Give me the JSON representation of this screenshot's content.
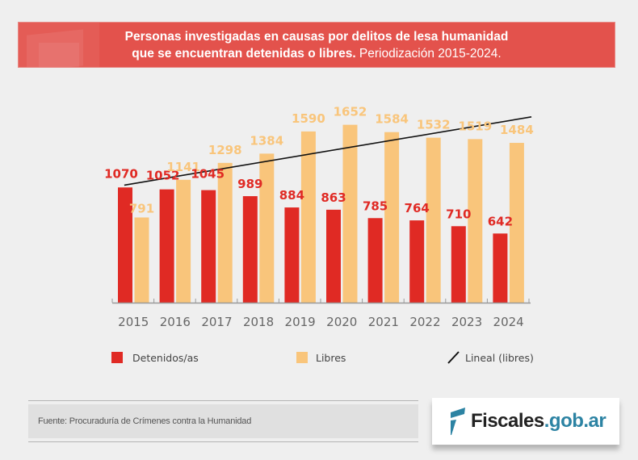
{
  "header": {
    "title_bold": "Personas investigadas en causas por delitos de lesa humanidad que se encuentran detenidas o libres.",
    "title_line1": "Personas investigadas en causas por delitos de lesa humanidad",
    "title_line2_bold": "que se encuentran detenidas o libres.",
    "title_line2_regular": " Periodización 2015-2024."
  },
  "colors": {
    "banner": "#e3524c",
    "detenidos": "#e02a24",
    "libres": "#f9c57b",
    "trend": "#111111",
    "brand_teal": "#2c83a3"
  },
  "chart_data": {
    "type": "bar",
    "title": "Personas investigadas en causas por delitos de lesa humanidad que se encuentran detenidas o libres. Periodización 2015-2024.",
    "categories": [
      "2015",
      "2016",
      "2017",
      "2018",
      "2019",
      "2020",
      "2021",
      "2022",
      "2023",
      "2024"
    ],
    "series": [
      {
        "name": "Detenidos/as",
        "color": "#e02a24",
        "values": [
          1070,
          1052,
          1045,
          989,
          884,
          863,
          785,
          764,
          710,
          642
        ]
      },
      {
        "name": "Libres",
        "color": "#f9c57b",
        "values": [
          791,
          1141,
          1298,
          1384,
          1590,
          1652,
          1584,
          1532,
          1519,
          1484
        ]
      }
    ],
    "trendline": {
      "name": "Lineal (libres)",
      "series": "Libres",
      "type": "linear"
    },
    "xlabel": "",
    "ylabel": "",
    "ylim": [
      0,
      1700
    ],
    "grid": false,
    "legend": {
      "position": "bottom",
      "entries": [
        "Detenidos/as",
        "Libres",
        "Lineal (libres)"
      ]
    }
  },
  "footer": {
    "source": "Fuente: Procuraduría de Crímenes contra la Humanidad",
    "logo_main": "Fiscales",
    "logo_suffix": ".gob.ar"
  }
}
